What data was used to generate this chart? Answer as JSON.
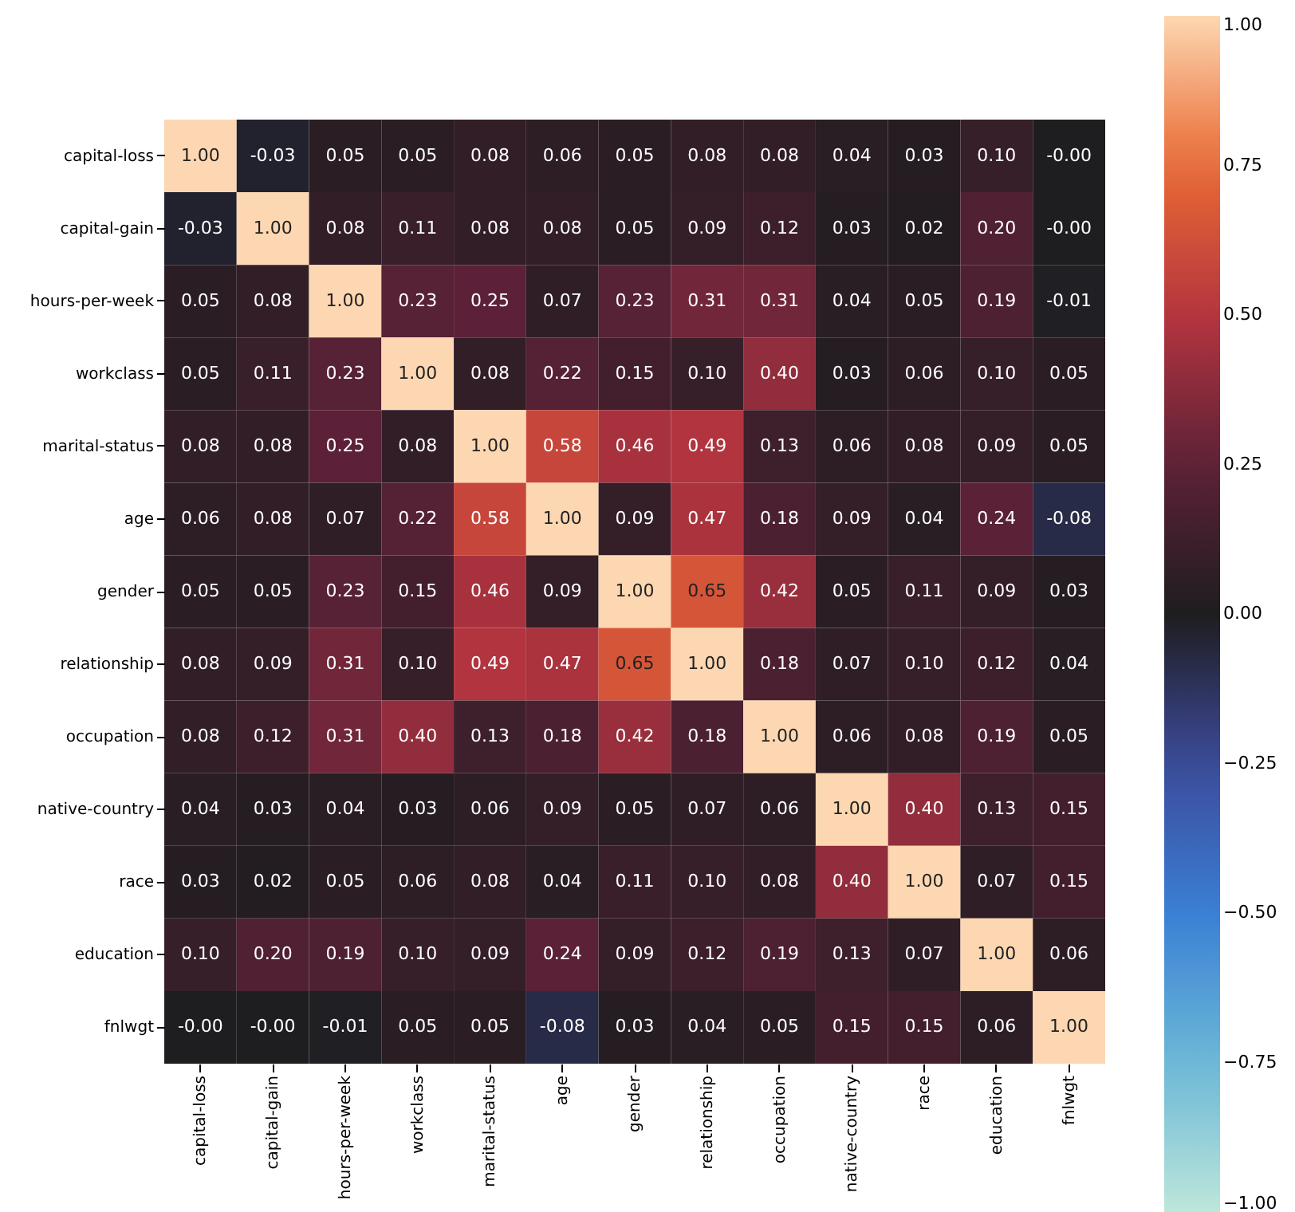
{
  "chart_data": {
    "type": "heatmap",
    "categories": [
      "capital-loss",
      "capital-gain",
      "hours-per-week",
      "workclass",
      "marital-status",
      "age",
      "gender",
      "relationship",
      "occupation",
      "native-country",
      "race",
      "education",
      "fnlwgt"
    ],
    "y_categories": [
      "capital-loss",
      "capital-gain",
      "hours-per-week",
      "workclass",
      "marital-status",
      "age",
      "gender",
      "relationship",
      "occupation",
      "native-country",
      "race",
      "education",
      "fnlwgt"
    ],
    "cells": [
      [
        1.0,
        -0.03,
        0.05,
        0.05,
        0.08,
        0.06,
        0.05,
        0.08,
        0.08,
        0.04,
        0.03,
        0.1,
        0.0
      ],
      [
        -0.03,
        1.0,
        0.08,
        0.11,
        0.08,
        0.08,
        0.05,
        0.09,
        0.12,
        0.03,
        0.02,
        0.2,
        0.0
      ],
      [
        0.05,
        0.08,
        1.0,
        0.23,
        0.25,
        0.07,
        0.23,
        0.31,
        0.31,
        0.04,
        0.05,
        0.19,
        -0.01
      ],
      [
        0.05,
        0.11,
        0.23,
        1.0,
        0.08,
        0.22,
        0.15,
        0.1,
        0.4,
        0.03,
        0.06,
        0.1,
        0.05
      ],
      [
        0.08,
        0.08,
        0.25,
        0.08,
        1.0,
        0.58,
        0.46,
        0.49,
        0.13,
        0.06,
        0.08,
        0.09,
        0.05
      ],
      [
        0.06,
        0.08,
        0.07,
        0.22,
        0.58,
        1.0,
        0.09,
        0.47,
        0.18,
        0.09,
        0.04,
        0.24,
        -0.08
      ],
      [
        0.05,
        0.05,
        0.23,
        0.15,
        0.46,
        0.09,
        1.0,
        0.65,
        0.42,
        0.05,
        0.11,
        0.09,
        0.03
      ],
      [
        0.08,
        0.09,
        0.31,
        0.1,
        0.49,
        0.47,
        0.65,
        1.0,
        0.18,
        0.07,
        0.1,
        0.12,
        0.04
      ],
      [
        0.08,
        0.12,
        0.31,
        0.4,
        0.13,
        0.18,
        0.42,
        0.18,
        1.0,
        0.06,
        0.08,
        0.19,
        0.05
      ],
      [
        0.04,
        0.03,
        0.04,
        0.03,
        0.06,
        0.09,
        0.05,
        0.07,
        0.06,
        1.0,
        0.4,
        0.13,
        0.15
      ],
      [
        0.03,
        0.02,
        0.05,
        0.06,
        0.08,
        0.04,
        0.11,
        0.1,
        0.08,
        0.4,
        1.0,
        0.07,
        0.15
      ],
      [
        0.1,
        0.2,
        0.19,
        0.1,
        0.09,
        0.24,
        0.09,
        0.12,
        0.19,
        0.13,
        0.07,
        1.0,
        0.06
      ],
      [
        0.0,
        0.0,
        -0.01,
        0.05,
        0.05,
        -0.08,
        0.03,
        0.04,
        0.05,
        0.15,
        0.15,
        0.06,
        1.0
      ]
    ],
    "cell_labels": [
      [
        "1.00",
        "-0.03",
        "0.05",
        "0.05",
        "0.08",
        "0.06",
        "0.05",
        "0.08",
        "0.08",
        "0.04",
        "0.03",
        "0.10",
        "-0.00"
      ],
      [
        "-0.03",
        "1.00",
        "0.08",
        "0.11",
        "0.08",
        "0.08",
        "0.05",
        "0.09",
        "0.12",
        "0.03",
        "0.02",
        "0.20",
        "-0.00"
      ],
      [
        "0.05",
        "0.08",
        "1.00",
        "0.23",
        "0.25",
        "0.07",
        "0.23",
        "0.31",
        "0.31",
        "0.04",
        "0.05",
        "0.19",
        "-0.01"
      ],
      [
        "0.05",
        "0.11",
        "0.23",
        "1.00",
        "0.08",
        "0.22",
        "0.15",
        "0.10",
        "0.40",
        "0.03",
        "0.06",
        "0.10",
        "0.05"
      ],
      [
        "0.08",
        "0.08",
        "0.25",
        "0.08",
        "1.00",
        "0.58",
        "0.46",
        "0.49",
        "0.13",
        "0.06",
        "0.08",
        "0.09",
        "0.05"
      ],
      [
        "0.06",
        "0.08",
        "0.07",
        "0.22",
        "0.58",
        "1.00",
        "0.09",
        "0.47",
        "0.18",
        "0.09",
        "0.04",
        "0.24",
        "-0.08"
      ],
      [
        "0.05",
        "0.05",
        "0.23",
        "0.15",
        "0.46",
        "0.09",
        "1.00",
        "0.65",
        "0.42",
        "0.05",
        "0.11",
        "0.09",
        "0.03"
      ],
      [
        "0.08",
        "0.09",
        "0.31",
        "0.10",
        "0.49",
        "0.47",
        "0.65",
        "1.00",
        "0.18",
        "0.07",
        "0.10",
        "0.12",
        "0.04"
      ],
      [
        "0.08",
        "0.12",
        "0.31",
        "0.40",
        "0.13",
        "0.18",
        "0.42",
        "0.18",
        "1.00",
        "0.06",
        "0.08",
        "0.19",
        "0.05"
      ],
      [
        "0.04",
        "0.03",
        "0.04",
        "0.03",
        "0.06",
        "0.09",
        "0.05",
        "0.07",
        "0.06",
        "1.00",
        "0.40",
        "0.13",
        "0.15"
      ],
      [
        "0.03",
        "0.02",
        "0.05",
        "0.06",
        "0.08",
        "0.04",
        "0.11",
        "0.10",
        "0.08",
        "0.40",
        "1.00",
        "0.07",
        "0.15"
      ],
      [
        "0.10",
        "0.20",
        "0.19",
        "0.10",
        "0.09",
        "0.24",
        "0.09",
        "0.12",
        "0.19",
        "0.13",
        "0.07",
        "1.00",
        "0.06"
      ],
      [
        "-0.00",
        "-0.00",
        "-0.01",
        "0.05",
        "0.05",
        "-0.08",
        "0.03",
        "0.04",
        "0.05",
        "0.15",
        "0.15",
        "0.06",
        "1.00"
      ]
    ],
    "clim": [
      -1,
      1
    ],
    "cticks": [
      {
        "value": -1,
        "label": "−1.00"
      },
      {
        "value": -0.75,
        "label": "−0.75"
      },
      {
        "value": -0.5,
        "label": "−0.50"
      },
      {
        "value": -0.25,
        "label": "−0.25"
      },
      {
        "value": 0,
        "label": "0.00"
      },
      {
        "value": 0.25,
        "label": "0.25"
      },
      {
        "value": 0.5,
        "label": "0.50"
      },
      {
        "value": 0.75,
        "label": "0.75"
      },
      {
        "value": 1,
        "label": "1.00"
      }
    ]
  }
}
